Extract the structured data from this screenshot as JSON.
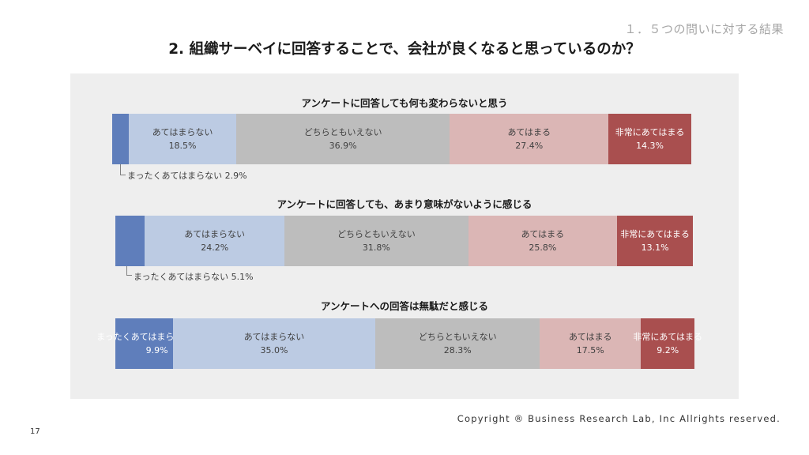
{
  "header": {
    "section_label": "１．５つの問いに対する結果",
    "title": "2. 組織サーベイに回答することで、会社が良くなると思っているのか？"
  },
  "colors": {
    "まったくあてはまらない": "#5f7ebb",
    "あてはまらない": "#bccbe3",
    "どちらともいえない": "#bdbdbd",
    "あてはまる": "#dbb6b5",
    "非常にあてはまる": "#a94f4f"
  },
  "chart_data": [
    {
      "type": "bar",
      "stacked": "100%",
      "title": "アンケートに回答しても何も変わらないと思う",
      "categories": [
        "まったくあてはまらない",
        "あてはまらない",
        "どちらともいえない",
        "あてはまる",
        "非常にあてはまる"
      ],
      "values": [
        2.9,
        18.5,
        36.9,
        27.4,
        14.3
      ],
      "value_labels": [
        "2.9%",
        "18.5%",
        "36.9%",
        "27.4%",
        "14.3%"
      ],
      "outside_label": "まったくあてはまらない 2.9%"
    },
    {
      "type": "bar",
      "stacked": "100%",
      "title": "アンケートに回答しても、あまり意味がないように感じる",
      "categories": [
        "まったくあてはまらない",
        "あてはまらない",
        "どちらともいえない",
        "あてはまる",
        "非常にあてはまる"
      ],
      "values": [
        5.1,
        24.2,
        31.8,
        25.8,
        13.1
      ],
      "value_labels": [
        "5.1%",
        "24.2%",
        "31.8%",
        "25.8%",
        "13.1%"
      ],
      "outside_label": "まったくあてはまらない 5.1%"
    },
    {
      "type": "bar",
      "stacked": "100%",
      "title": "アンケートへの回答は無駄だと感じる",
      "categories": [
        "まったくあてはまらない",
        "あてはまらない",
        "どちらともいえない",
        "あてはまる",
        "非常にあてはまる"
      ],
      "values": [
        9.9,
        35.0,
        28.3,
        17.5,
        9.2
      ],
      "value_labels": [
        "9.9%",
        "35.0%",
        "28.3%",
        "17.5%",
        "9.2%"
      ],
      "outside_label": ""
    }
  ],
  "footer": {
    "copyright": "Copyright ® Business Research Lab, Inc Allrights reserved.",
    "page_number": "17"
  }
}
